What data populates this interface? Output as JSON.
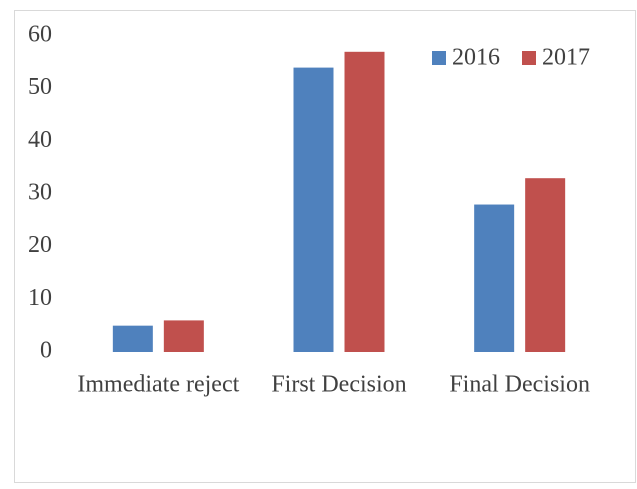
{
  "chart_data": {
    "type": "bar",
    "categories": [
      "Immediate reject",
      "First Decision",
      "Final Decision"
    ],
    "series": [
      {
        "name": "2016",
        "color": "#4f81bd",
        "values": [
          5,
          54,
          28
        ]
      },
      {
        "name": "2017",
        "color": "#c0504d",
        "values": [
          6,
          57,
          33
        ]
      }
    ],
    "ylim": [
      0,
      60
    ],
    "yticks": [
      0,
      10,
      20,
      30,
      40,
      50,
      60
    ],
    "grid": false,
    "legend": "top-right"
  }
}
